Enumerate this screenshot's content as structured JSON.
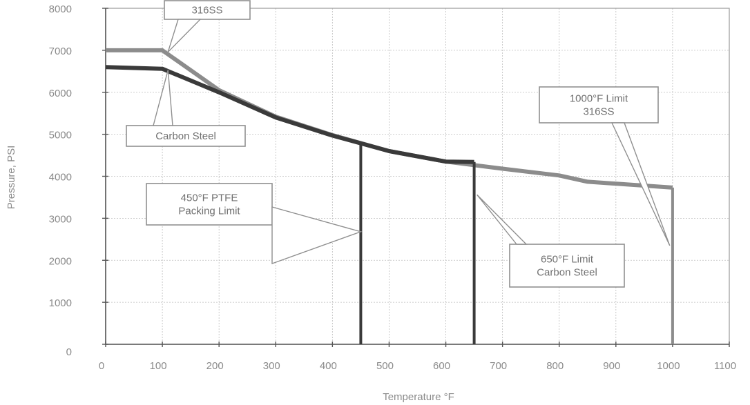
{
  "chart_data": {
    "type": "line",
    "title": "",
    "xlabel": "Temperature °F",
    "ylabel": "Pressure, PSI",
    "xlim": [
      0,
      1100
    ],
    "ylim": [
      0,
      8000
    ],
    "x_ticks": [
      0,
      100,
      200,
      300,
      400,
      500,
      600,
      700,
      800,
      900,
      1000,
      1100
    ],
    "y_ticks": [
      0,
      1000,
      2000,
      3000,
      4000,
      5000,
      6000,
      7000,
      8000
    ],
    "grid": true,
    "series": [
      {
        "name": "316SS",
        "color": "#8c8c8c",
        "points": [
          [
            0,
            7000
          ],
          [
            100,
            7000
          ],
          [
            200,
            6050
          ],
          [
            300,
            5420
          ],
          [
            400,
            4980
          ],
          [
            500,
            4600
          ],
          [
            600,
            4350
          ],
          [
            700,
            4180
          ],
          [
            800,
            4020
          ],
          [
            850,
            3870
          ],
          [
            1000,
            3730
          ]
        ]
      },
      {
        "name": "Carbon Steel",
        "color": "#3a3a3a",
        "points": [
          [
            0,
            6600
          ],
          [
            100,
            6560
          ],
          [
            200,
            6000
          ],
          [
            300,
            5400
          ],
          [
            400,
            4970
          ],
          [
            500,
            4600
          ],
          [
            600,
            4350
          ],
          [
            650,
            4340
          ]
        ]
      }
    ],
    "limit_lines": [
      {
        "x": 450,
        "y_top": 4820,
        "color": "#3a3a3a"
      },
      {
        "x": 650,
        "y_top": 4340,
        "color": "#3a3a3a"
      },
      {
        "x": 1000,
        "y_top": 3730,
        "color": "#8c8c8c"
      }
    ],
    "annotations": [
      {
        "lines": [
          "316SS"
        ],
        "point": [
          110,
          6960
        ]
      },
      {
        "lines": [
          "Carbon Steel"
        ],
        "point": [
          110,
          6530
        ]
      },
      {
        "lines": [
          "450°F PTFE",
          "Packing Limit"
        ],
        "point": [
          450,
          2680
        ]
      },
      {
        "lines": [
          "650°F Limit",
          "Carbon Steel"
        ],
        "point": [
          655,
          3560
        ]
      },
      {
        "lines": [
          "1000°F Limit",
          "316SS"
        ],
        "point": [
          995,
          2350
        ]
      }
    ]
  }
}
